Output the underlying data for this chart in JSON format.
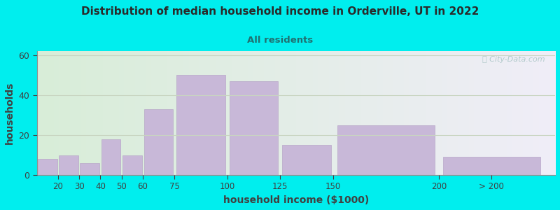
{
  "title": "Distribution of median household income in Orderville, UT in 2022",
  "subtitle": "All residents",
  "xlabel": "household income ($1000)",
  "ylabel": "households",
  "bar_labels": [
    "20",
    "30",
    "40",
    "50",
    "60",
    "75",
    "100",
    "125",
    "150",
    "200",
    "> 200"
  ],
  "bar_values": [
    8,
    10,
    6,
    18,
    10,
    33,
    50,
    47,
    15,
    25,
    9
  ],
  "bar_color": "#c8b8d8",
  "bar_edge_color": "#b8a8c8",
  "ylim": [
    0,
    62
  ],
  "yticks": [
    0,
    20,
    40,
    60
  ],
  "bg_color": "#00eeee",
  "plot_bg_color_left": "#d8edd8",
  "plot_bg_color_right": "#f0eef8",
  "grid_color": "#c8d4c0",
  "title_color": "#2a2a2a",
  "subtitle_color": "#207070",
  "axis_label_color": "#404040",
  "tick_color": "#404040",
  "watermark_text": "ⓘ City-Data.com",
  "watermark_color": "#a8c4c4"
}
